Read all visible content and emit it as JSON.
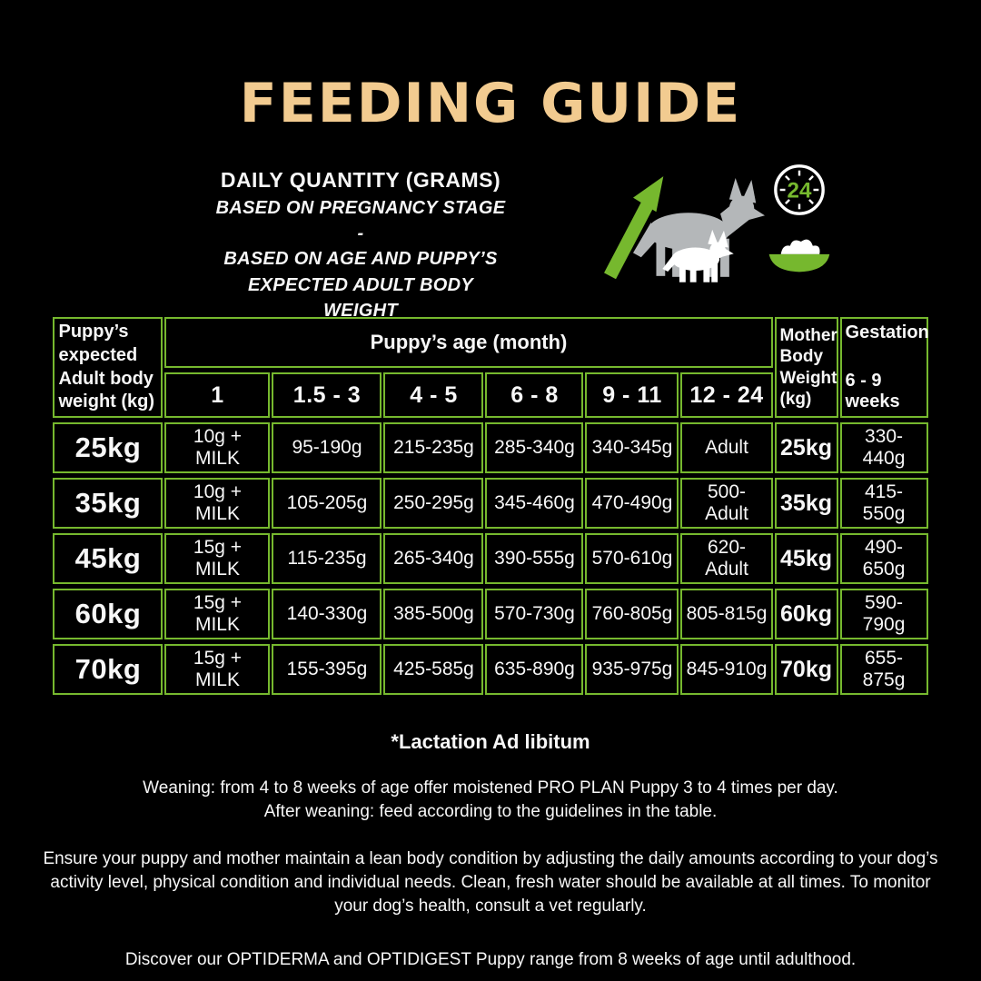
{
  "title": "FEEDING GUIDE",
  "subtitle": {
    "line1": "DAILY QUANTITY (GRAMS)",
    "line2": "BASED ON PREGNANCY STAGE -",
    "line3": "BASED ON AGE AND PUPPY’S",
    "line4": "EXPECTED ADULT BODY WEIGHT"
  },
  "icons": {
    "growth": "dog-growth-arrow",
    "clock": "24-hours-clock",
    "clock_label": "24",
    "bowl": "food-bowl"
  },
  "colors": {
    "accent_green": "#76b82e",
    "title_gold": "#f2cb90",
    "dog_gray": "#b4b7b9",
    "background": "#000000"
  },
  "table": {
    "col1_header": "Puppy’s expected Adult body weight (kg)",
    "age_header": "Puppy’s age (month)",
    "age_columns": [
      "1",
      "1.5 - 3",
      "4 - 5",
      "6 - 8",
      "9 - 11",
      "12 - 24"
    ],
    "mother_header": "Mother Body Weight (kg)",
    "gestation_header": "Gestation",
    "gestation_sub": "6 - 9 weeks",
    "rows": [
      {
        "weight": "25kg",
        "values": [
          "10g + MILK",
          "95-190g",
          "215-235g",
          "285-340g",
          "340-345g",
          "Adult"
        ],
        "mother": "25kg",
        "gestation": "330-440g"
      },
      {
        "weight": "35kg",
        "values": [
          "10g + MILK",
          "105-205g",
          "250-295g",
          "345-460g",
          "470-490g",
          "500-Adult"
        ],
        "mother": "35kg",
        "gestation": "415-550g"
      },
      {
        "weight": "45kg",
        "values": [
          "15g + MILK",
          "115-235g",
          "265-340g",
          "390-555g",
          "570-610g",
          "620-Adult"
        ],
        "mother": "45kg",
        "gestation": "490-650g"
      },
      {
        "weight": "60kg",
        "values": [
          "15g + MILK",
          "140-330g",
          "385-500g",
          "570-730g",
          "760-805g",
          "805-815g"
        ],
        "mother": "60kg",
        "gestation": "590-790g"
      },
      {
        "weight": "70kg",
        "values": [
          "15g + MILK",
          "155-395g",
          "425-585g",
          "635-890g",
          "935-975g",
          "845-910g"
        ],
        "mother": "70kg",
        "gestation": "655-875g"
      }
    ]
  },
  "footer": {
    "lactation": "*Lactation Ad libitum",
    "weaning_line1": "Weaning: from 4 to 8 weeks of age offer moistened PRO PLAN Puppy 3 to 4 times per day.",
    "weaning_line2": "After weaning: feed according to the guidelines in the table.",
    "ensure": "Ensure your puppy and mother maintain a lean body condition by adjusting the daily amounts according to your dog’s activity level, physical condition and individual needs. Clean, fresh water should be available at all times. To monitor your dog’s health, consult a vet regularly.",
    "discover": "Discover our OPTIDERMA and OPTIDIGEST Puppy range from 8 weeks of age until adulthood."
  }
}
